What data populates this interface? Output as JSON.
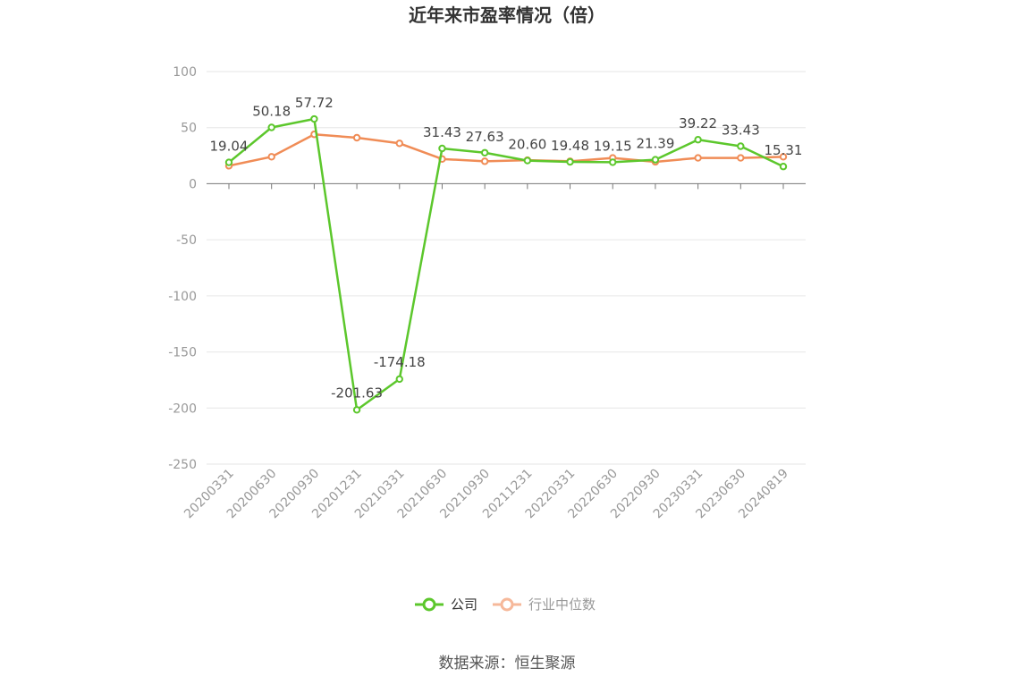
{
  "chart_data": {
    "type": "line",
    "title": "近年来市盈率情况（倍）",
    "categories": [
      "20200331",
      "20200630",
      "20200930",
      "20201231",
      "20210331",
      "20210630",
      "20210930",
      "20211231",
      "20220331",
      "20220630",
      "20220930",
      "20230331",
      "20230630",
      "20240819"
    ],
    "ylim": [
      -250,
      100
    ],
    "yticks": [
      "100",
      "50",
      "0",
      "-50",
      "-100",
      "-150",
      "-200",
      "-250"
    ],
    "series": [
      {
        "name": "公司",
        "color": "#5cc72c",
        "values": [
          19.04,
          50.18,
          57.72,
          -201.63,
          -174.18,
          31.43,
          27.63,
          20.6,
          19.48,
          19.15,
          21.39,
          39.22,
          33.43,
          15.31
        ],
        "labels": [
          "19.04",
          "50.18",
          "57.72",
          "-201.63",
          "-174.18",
          "31.43",
          "27.63",
          "20.60",
          "19.48",
          "19.15",
          "21.39",
          "39.22",
          "33.43",
          "15.31"
        ]
      },
      {
        "name": "行业中位数",
        "color": "#f08c56",
        "values": [
          16,
          24,
          44,
          41,
          36,
          22,
          20,
          21,
          20,
          23,
          19.5,
          23,
          23,
          24
        ]
      }
    ],
    "grid": true,
    "legend": "bottom-center"
  },
  "source": "数据来源：恒生聚源"
}
